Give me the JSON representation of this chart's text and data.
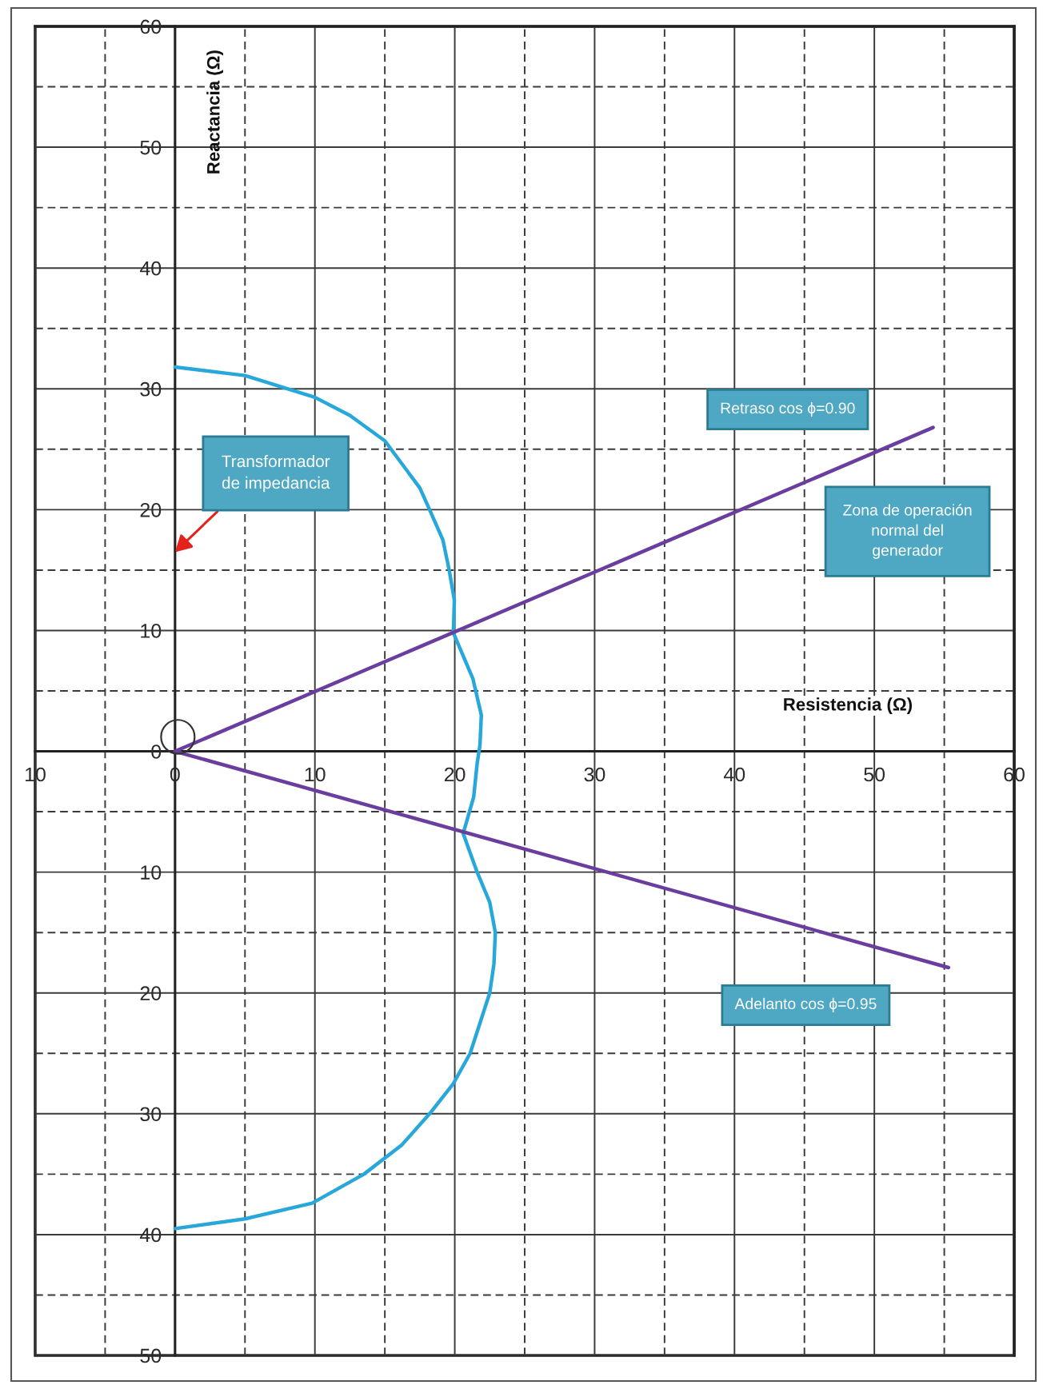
{
  "chart_data": {
    "type": "line",
    "xlabel": "Resistencia (Ω)",
    "ylabel": "Reactancia (Ω)",
    "xlim": [
      -10,
      60
    ],
    "ylim": [
      -50,
      60
    ],
    "xticks": [
      {
        "value": -10,
        "label": "10"
      },
      {
        "value": -5,
        "label": null
      },
      0,
      {
        "value": 5,
        "label": null
      },
      10,
      {
        "value": 15,
        "label": null
      },
      20,
      {
        "value": 25,
        "label": null
      },
      30,
      {
        "value": 35,
        "label": null
      },
      40,
      {
        "value": 45,
        "label": null
      },
      50,
      {
        "value": 55,
        "label": null
      },
      60
    ],
    "yticks": [
      {
        "value": -50,
        "label": "50"
      },
      {
        "value": -45,
        "label": null
      },
      {
        "value": -40,
        "label": "40"
      },
      {
        "value": -35,
        "label": null
      },
      {
        "value": -30,
        "label": "30"
      },
      {
        "value": -25,
        "label": null
      },
      {
        "value": -20,
        "label": "20"
      },
      {
        "value": -15,
        "label": null
      },
      {
        "value": -10,
        "label": "10"
      },
      {
        "value": -5,
        "label": null
      },
      0,
      {
        "value": 5,
        "label": null
      },
      10,
      {
        "value": 15,
        "label": null
      },
      20,
      {
        "value": 25,
        "label": null
      },
      30,
      {
        "value": 35,
        "label": null
      },
      40,
      {
        "value": 45,
        "label": null
      },
      50,
      {
        "value": 55,
        "label": null
      },
      60
    ],
    "grid": true,
    "series": [
      {
        "color": "#27a7da",
        "x": [
          0,
          5,
          10,
          12.5,
          15,
          17.5,
          18.2,
          19.15,
          19.6,
          19.97,
          19.9,
          21.3,
          21.9,
          21.8,
          21.6,
          21.35,
          20.6,
          21.6,
          22.5,
          22.9,
          22.8,
          22.5,
          21.8,
          21.1,
          19.9,
          18.2,
          16.2,
          13.5,
          9.8,
          5,
          0
        ],
        "values": [
          31.8,
          31.1,
          29.3,
          27.8,
          25.7,
          21.8,
          20,
          17.5,
          15,
          12.5,
          9.8,
          6.0,
          3.0,
          0.5,
          -1,
          -3.8,
          -6.8,
          -10,
          -12.5,
          -15,
          -17.6,
          -20,
          -22.5,
          -25,
          -27.5,
          -30,
          -32.6,
          -35,
          -37.4,
          -38.7,
          -39.5
        ]
      },
      {
        "color": "#6a3e9e",
        "x": [
          0,
          54.2
        ],
        "values": [
          0,
          26.8
        ]
      },
      {
        "color": "#6a3e9e",
        "x": [
          0,
          55.3
        ],
        "values": [
          0,
          -17.9
        ]
      }
    ],
    "annotations": [
      "Transformador\nde impedancia",
      "Retraso cos ϕ=0.90",
      "Zona de operación\nnormal del\ngenerador",
      "Adelanto cos ϕ=0.95"
    ]
  }
}
